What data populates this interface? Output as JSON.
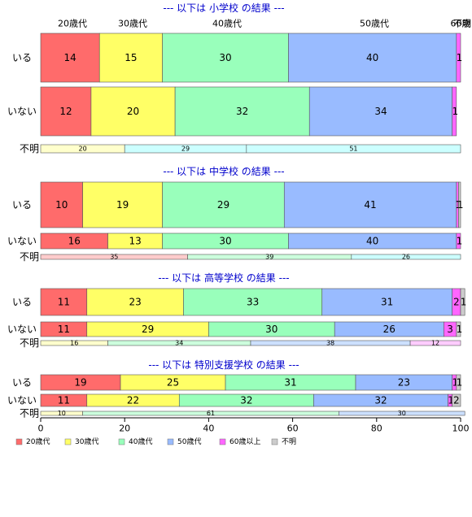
{
  "chart_data": {
    "type": "bar",
    "orientation": "horizontal-stacked-100",
    "legend": {
      "placement": "bottom-left",
      "items": [
        {
          "name": "20歳代",
          "color": "#ff6b6b"
        },
        {
          "name": "30歳代",
          "color": "#ffff66"
        },
        {
          "name": "40歳代",
          "color": "#99ffbb"
        },
        {
          "name": "50歳代",
          "color": "#99bbff"
        },
        {
          "name": "60歳以上",
          "color": "#ff66ff"
        },
        {
          "name": "不明",
          "color": "#cccccc"
        }
      ]
    },
    "x_axis": {
      "min": 0,
      "max": 100,
      "ticks": [
        "0",
        "20",
        "40",
        "60",
        "80",
        "100"
      ]
    },
    "top_age_labels": [
      "20歳代",
      "30歳代",
      "40歳代",
      "50歳代",
      "60歳",
      "不明"
    ],
    "groups": [
      {
        "title": "--- 以下は 小学校 の結果 ---",
        "rows": [
          {
            "label": "いる",
            "values": [
              14,
              15,
              30,
              40,
              1,
              0
            ],
            "labels": [
              "14",
              "15",
              "30",
              "40",
              "1",
              ""
            ]
          },
          {
            "label": "いない",
            "values": [
              12,
              20,
              32,
              34,
              1,
              0
            ],
            "labels": [
              "12",
              "20",
              "32",
              "34",
              "1",
              ""
            ]
          },
          {
            "label": "不明",
            "values": [
              20,
              29,
              51
            ],
            "labels": [
              "20",
              "29",
              "51"
            ],
            "colors": [
              "#ffffcc",
              "#ccffff",
              "#ccffff"
            ]
          }
        ]
      },
      {
        "title": "--- 以下は 中学校 の結果 ---",
        "rows": [
          {
            "label": "いる",
            "values": [
              10,
              19,
              29,
              41,
              0.5,
              0.5
            ],
            "labels": [
              "10",
              "19",
              "29",
              "41",
              "1",
              "1"
            ]
          },
          {
            "label": "いない",
            "values": [
              16,
              13,
              30,
              40,
              1,
              0
            ],
            "labels": [
              "16",
              "13",
              "30",
              "40",
              "1",
              ""
            ]
          },
          {
            "label": "不明",
            "values": [
              35,
              39,
              26
            ],
            "labels": [
              "35",
              "39",
              "26"
            ],
            "colors": [
              "#ffcccc",
              "#ccffdd",
              "#ccffff"
            ]
          }
        ]
      },
      {
        "title": "--- 以下は 高等学校 の結果 ---",
        "rows": [
          {
            "label": "いる",
            "values": [
              11,
              23,
              33,
              31,
              2,
              1
            ],
            "labels": [
              "11",
              "23",
              "33",
              "31",
              "2",
              "1"
            ]
          },
          {
            "label": "いない",
            "values": [
              11,
              29,
              30,
              26,
              3,
              1
            ],
            "labels": [
              "11",
              "29",
              "30",
              "26",
              "3",
              "1"
            ]
          },
          {
            "label": "不明",
            "values": [
              16,
              34,
              38,
              12
            ],
            "labels": [
              "16",
              "34",
              "38",
              "12"
            ],
            "colors": [
              "#ffffcc",
              "#ccffdd",
              "#cce0ff",
              "#ffccff"
            ]
          }
        ]
      },
      {
        "title": "--- 以下は 特別支援学校 の結果 ---",
        "rows": [
          {
            "label": "いる",
            "values": [
              19,
              25,
              31,
              23,
              1,
              1
            ],
            "labels": [
              "19",
              "25",
              "31",
              "23",
              "1",
              "1"
            ]
          },
          {
            "label": "いない",
            "values": [
              11,
              22,
              32,
              32,
              1,
              2
            ],
            "labels": [
              "11",
              "22",
              "32",
              "32",
              "1",
              "2"
            ]
          },
          {
            "label": "不明",
            "values": [
              10,
              61,
              30
            ],
            "labels": [
              "10",
              "61",
              "30"
            ],
            "colors": [
              "#ffffcc",
              "#ccffdd",
              "#cce0ff"
            ]
          }
        ]
      }
    ]
  }
}
